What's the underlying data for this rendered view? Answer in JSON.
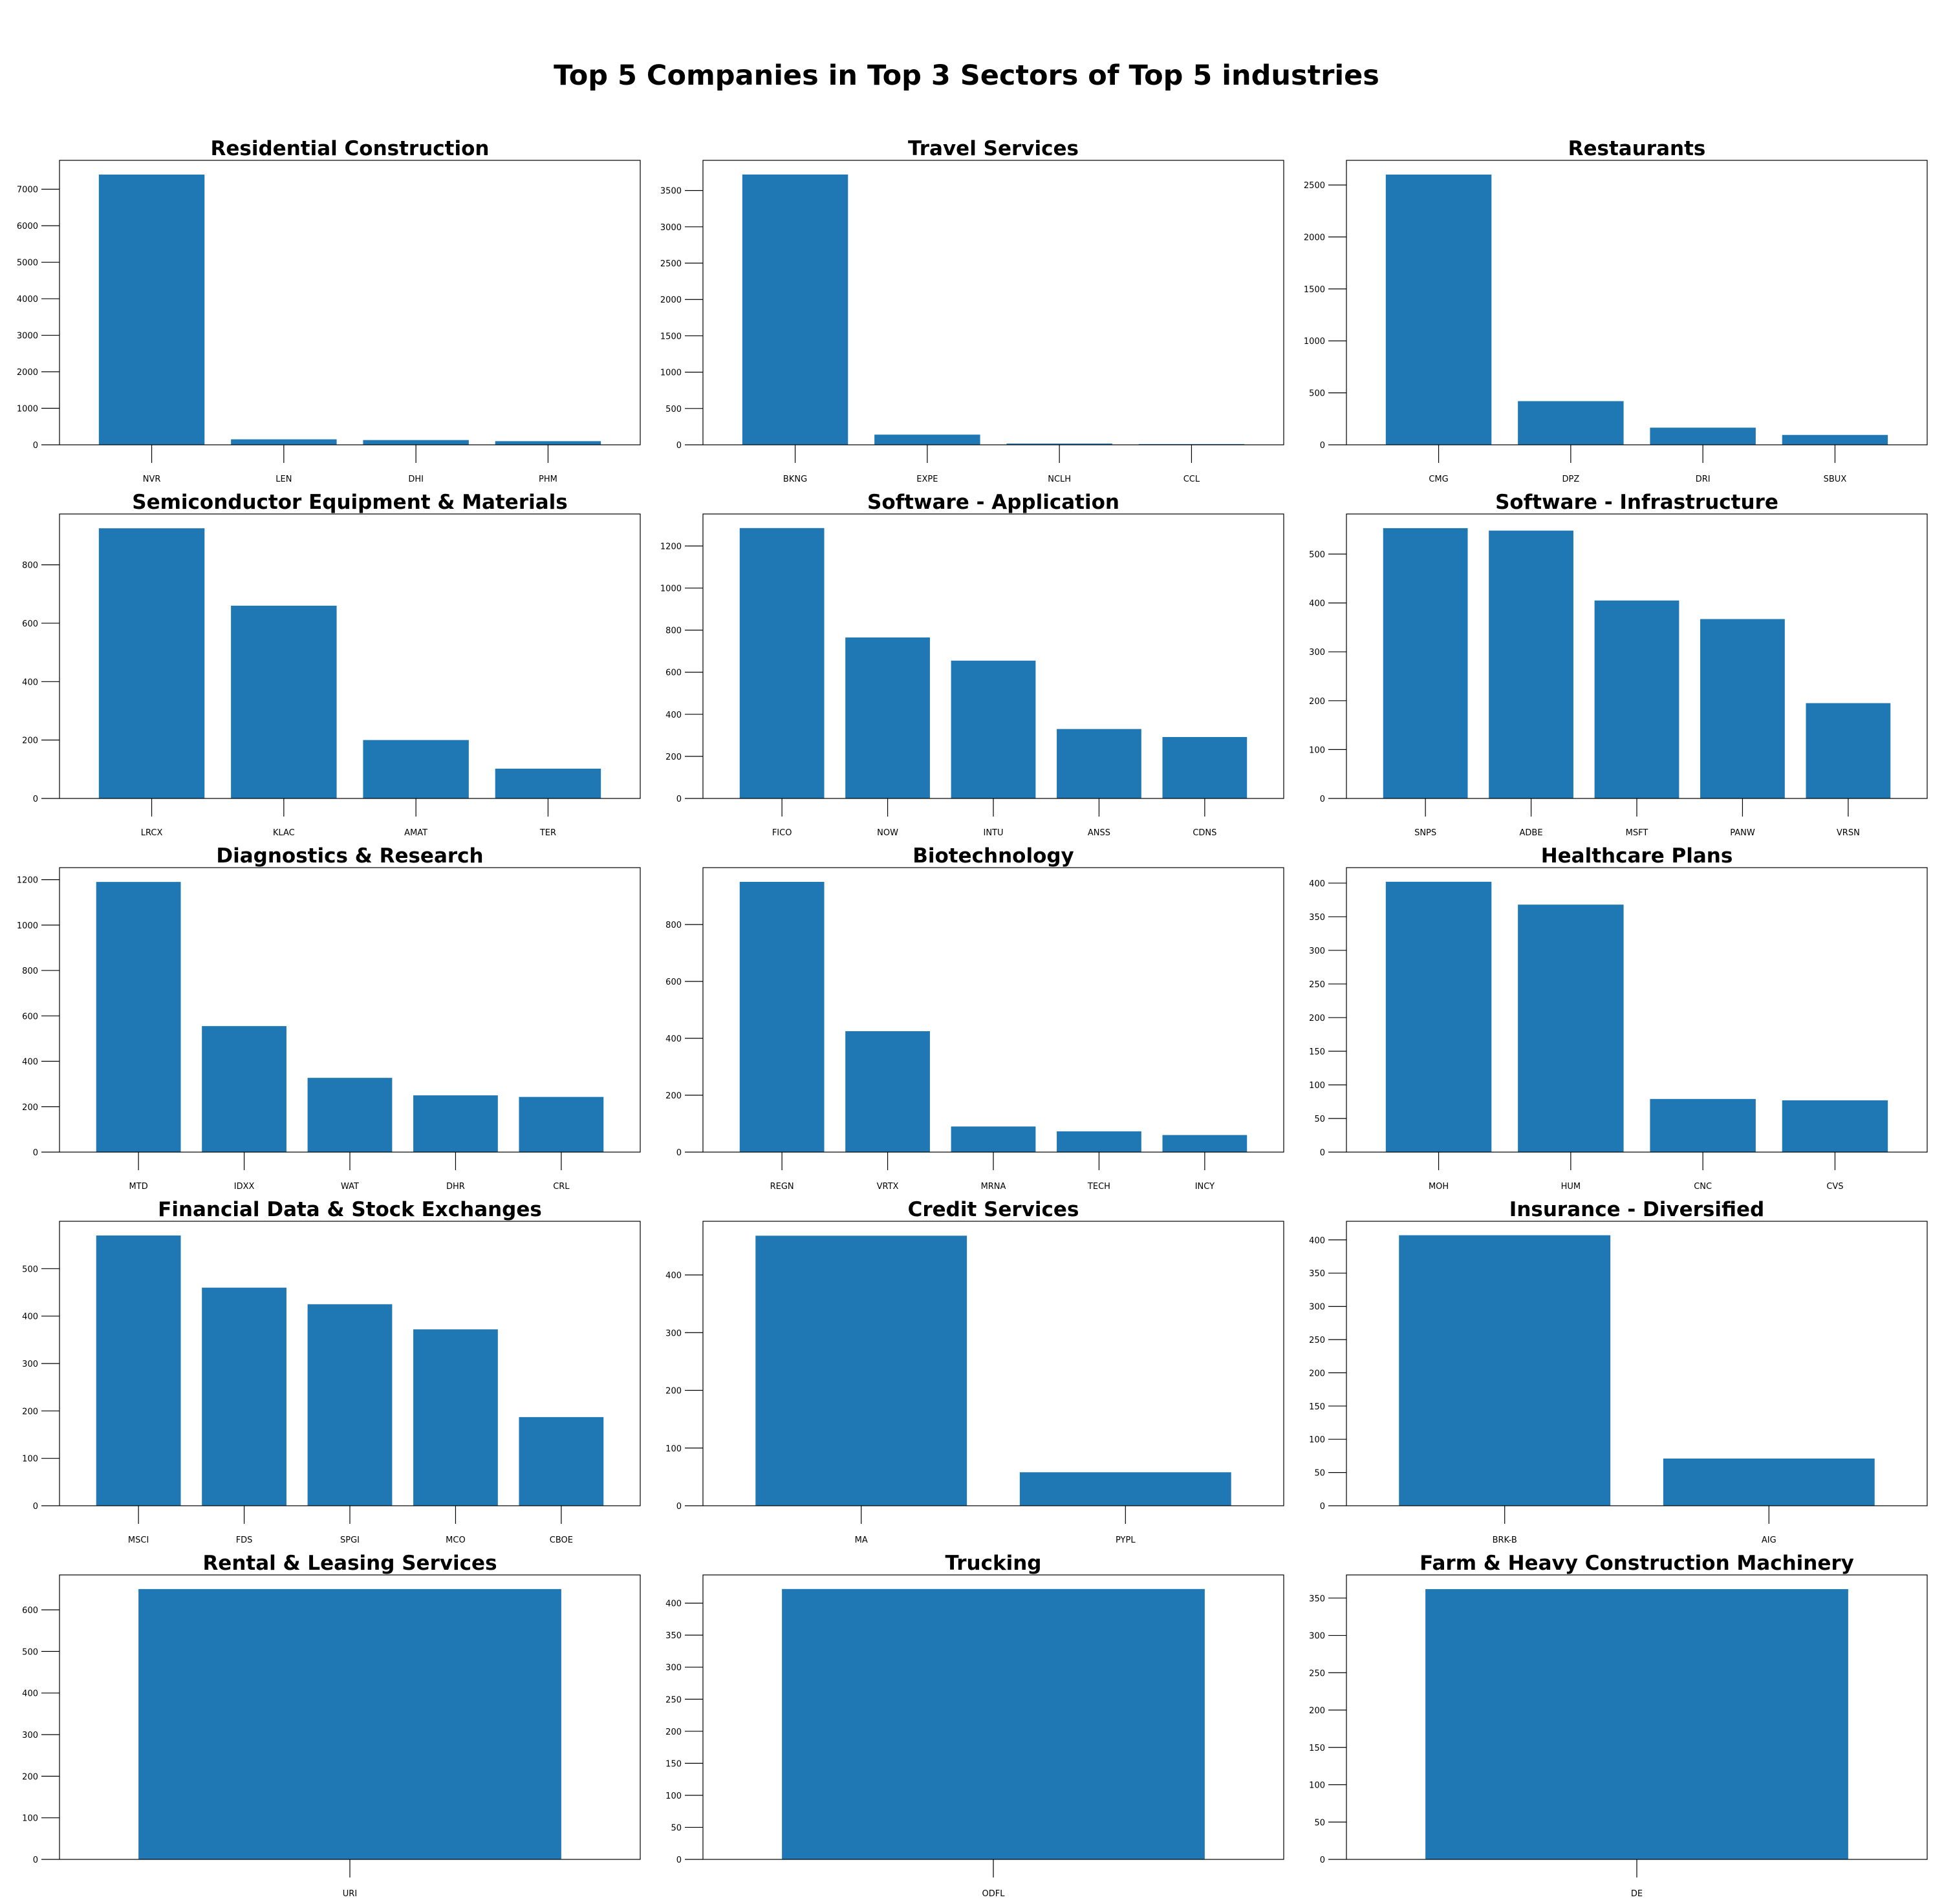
{
  "suptitle": "Top 5 Companies in Top 3 Sectors of Top 5 industries",
  "bar_color": "#1f77b4",
  "chart_data": [
    {
      "type": "bar",
      "title": "Residential Construction",
      "categories": [
        "NVR",
        "LEN",
        "DHI",
        "PHM"
      ],
      "values": [
        7400,
        150,
        130,
        100
      ],
      "ylim": [
        0,
        7790
      ],
      "yticks": [
        0,
        1000,
        2000,
        3000,
        4000,
        5000,
        6000,
        7000
      ]
    },
    {
      "type": "bar",
      "title": "Travel Services",
      "categories": [
        "BKNG",
        "EXPE",
        "NCLH",
        "CCL"
      ],
      "values": [
        3720,
        140,
        17,
        10
      ],
      "ylim": [
        0,
        3915
      ],
      "yticks": [
        0,
        500,
        1000,
        1500,
        2000,
        2500,
        3000,
        3500
      ]
    },
    {
      "type": "bar",
      "title": "Restaurants",
      "categories": [
        "CMG",
        "DPZ",
        "DRI",
        "SBUX"
      ],
      "values": [
        2600,
        420,
        165,
        95
      ],
      "ylim": [
        0,
        2737
      ],
      "yticks": [
        0,
        500,
        1000,
        1500,
        2000,
        2500
      ]
    },
    {
      "type": "bar",
      "title": "Semiconductor Equipment & Materials",
      "categories": [
        "LRCX",
        "KLAC",
        "AMAT",
        "TER"
      ],
      "values": [
        925,
        660,
        200,
        102
      ],
      "ylim": [
        0,
        974
      ],
      "yticks": [
        0,
        200,
        400,
        600,
        800
      ]
    },
    {
      "type": "bar",
      "title": "Software - Application",
      "categories": [
        "FICO",
        "NOW",
        "INTU",
        "ANSS",
        "CDNS"
      ],
      "values": [
        1285,
        765,
        655,
        330,
        292
      ],
      "ylim": [
        0,
        1352
      ],
      "yticks": [
        0,
        200,
        400,
        600,
        800,
        1000,
        1200
      ]
    },
    {
      "type": "bar",
      "title": "Software - Infrastructure",
      "categories": [
        "SNPS",
        "ADBE",
        "MSFT",
        "PANW",
        "VRSN"
      ],
      "values": [
        553,
        548,
        405,
        367,
        195
      ],
      "ylim": [
        0,
        582
      ],
      "yticks": [
        0,
        100,
        200,
        300,
        400,
        500
      ]
    },
    {
      "type": "bar",
      "title": "Diagnostics & Research",
      "categories": [
        "MTD",
        "IDXX",
        "WAT",
        "DHR",
        "CRL"
      ],
      "values": [
        1190,
        555,
        327,
        250,
        243
      ],
      "ylim": [
        0,
        1253
      ],
      "yticks": [
        0,
        200,
        400,
        600,
        800,
        1000,
        1200
      ]
    },
    {
      "type": "bar",
      "title": "Biotechnology",
      "categories": [
        "REGN",
        "VRTX",
        "MRNA",
        "TECH",
        "INCY"
      ],
      "values": [
        950,
        425,
        90,
        73,
        60
      ],
      "ylim": [
        0,
        1000
      ],
      "yticks": [
        0,
        200,
        400,
        600,
        800
      ]
    },
    {
      "type": "bar",
      "title": "Healthcare Plans",
      "categories": [
        "MOH",
        "HUM",
        "CNC",
        "CVS"
      ],
      "values": [
        402,
        368,
        79,
        77
      ],
      "ylim": [
        0,
        423
      ],
      "yticks": [
        0,
        50,
        100,
        150,
        200,
        250,
        300,
        350,
        400
      ]
    },
    {
      "type": "bar",
      "title": "Financial Data & Stock Exchanges",
      "categories": [
        "MSCI",
        "FDS",
        "SPGI",
        "MCO",
        "CBOE"
      ],
      "values": [
        570,
        460,
        425,
        372,
        187
      ],
      "ylim": [
        0,
        600
      ],
      "yticks": [
        0,
        100,
        200,
        300,
        400,
        500
      ]
    },
    {
      "type": "bar",
      "title": "Credit Services",
      "categories": [
        "MA",
        "PYPL"
      ],
      "values": [
        468,
        58
      ],
      "ylim": [
        0,
        493
      ],
      "yticks": [
        0,
        100,
        200,
        300,
        400
      ]
    },
    {
      "type": "bar",
      "title": "Insurance - Diversified",
      "categories": [
        "BRK-B",
        "AIG"
      ],
      "values": [
        407,
        71
      ],
      "ylim": [
        0,
        428
      ],
      "yticks": [
        0,
        50,
        100,
        150,
        200,
        250,
        300,
        350,
        400
      ]
    },
    {
      "type": "bar",
      "title": "Rental & Leasing Services",
      "categories": [
        "URI"
      ],
      "values": [
        650
      ],
      "ylim": [
        0,
        684
      ],
      "yticks": [
        0,
        100,
        200,
        300,
        400,
        500,
        600
      ]
    },
    {
      "type": "bar",
      "title": "Trucking",
      "categories": [
        "ODFL"
      ],
      "values": [
        422
      ],
      "ylim": [
        0,
        444
      ],
      "yticks": [
        0,
        50,
        100,
        150,
        200,
        250,
        300,
        350,
        400
      ]
    },
    {
      "type": "bar",
      "title": "Farm & Heavy Construction Machinery",
      "categories": [
        "DE"
      ],
      "values": [
        362
      ],
      "ylim": [
        0,
        381
      ],
      "yticks": [
        0,
        50,
        100,
        150,
        200,
        250,
        300,
        350
      ]
    }
  ]
}
